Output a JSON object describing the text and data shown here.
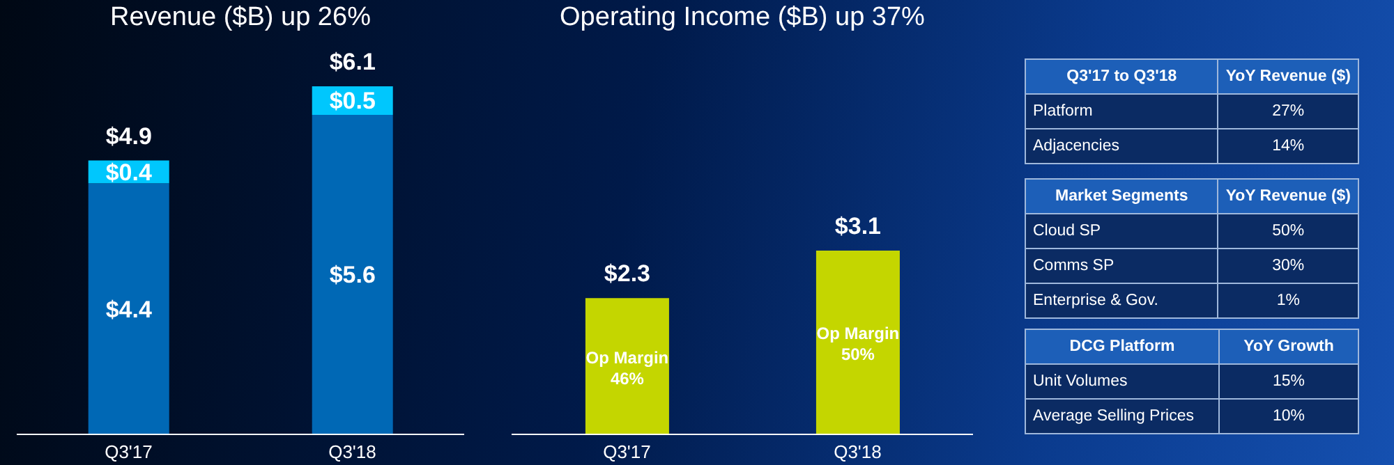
{
  "chart_data": [
    {
      "type": "bar",
      "title": "Revenue ($B) up 26%",
      "categories": [
        "Q3'17",
        "Q3'18"
      ],
      "stacked": true,
      "series": [
        {
          "color": "#0068b5",
          "values": [
            4.4,
            5.6
          ],
          "value_labels": [
            "$4.4",
            "$5.6"
          ]
        },
        {
          "color": "#00c7fd",
          "values": [
            0.4,
            0.5
          ],
          "value_labels": [
            "$0.4",
            "$0.5"
          ]
        }
      ],
      "totals": [
        "$4.9",
        "$6.1"
      ]
    },
    {
      "type": "bar",
      "title": "Operating Income ($B) up 37%",
      "categories": [
        "Q3'17",
        "Q3'18"
      ],
      "series": [
        {
          "color": "#c4d600",
          "values": [
            2.3,
            3.1
          ],
          "value_labels": [
            "$2.3",
            "$3.1"
          ]
        }
      ],
      "annotations": [
        "Op Margin 46%",
        "Op Margin 50%"
      ]
    },
    {
      "type": "other",
      "xlabel": "Q3'17 to Q3'18",
      "ylabel": "YoY Revenue ($)",
      "categories": [
        "Platform",
        "Adjacencies"
      ],
      "value_labels": [
        "27%",
        "14%"
      ]
    },
    {
      "type": "other",
      "xlabel": "Market Segments",
      "ylabel": "YoY Revenue ($)",
      "categories": [
        "Cloud SP",
        "Comms SP",
        "Enterprise & Gov."
      ],
      "value_labels": [
        "50%",
        "30%",
        "1%"
      ]
    },
    {
      "type": "other",
      "xlabel": "DCG Platform",
      "ylabel": "YoY Growth",
      "categories": [
        "Unit Volumes",
        "Average Selling Prices"
      ],
      "value_labels": [
        "15%",
        "10%"
      ]
    }
  ]
}
